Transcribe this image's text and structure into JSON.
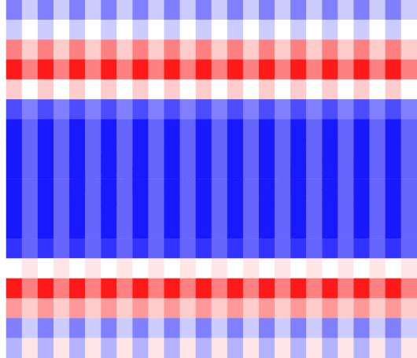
{
  "chart_data": {
    "type": "heatmap",
    "tick_labels": false,
    "color_range": [
      -1,
      1
    ],
    "colors": [
      "#0000ff",
      "#ffffff",
      "#ff0000"
    ],
    "cells": [
      [
        -0.5,
        -0.2,
        -0.5,
        -0.2,
        -0.5,
        -0.2,
        -0.5,
        -0.2,
        -0.5,
        -0.2,
        -0.5,
        -0.2,
        -0.5,
        -0.2,
        -0.5,
        -0.2,
        -0.5,
        -0.2,
        -0.5,
        -0.2,
        -0.5,
        -0.2,
        -0.5,
        -0.2,
        -0.5,
        -0.2
      ],
      [
        -0.2,
        0.0,
        -0.2,
        0.0,
        -0.2,
        0.0,
        -0.2,
        0.0,
        -0.2,
        0.0,
        -0.2,
        0.0,
        -0.2,
        0.0,
        -0.2,
        0.0,
        -0.2,
        0.0,
        -0.2,
        0.0,
        -0.2,
        0.0,
        -0.2,
        0.0,
        -0.2,
        0.0
      ],
      [
        0.5,
        0.2,
        0.5,
        0.2,
        0.5,
        0.2,
        0.5,
        0.2,
        0.5,
        0.2,
        0.5,
        0.2,
        0.5,
        0.2,
        0.5,
        0.2,
        0.5,
        0.2,
        0.5,
        0.2,
        0.5,
        0.2,
        0.5,
        0.2,
        0.5,
        0.2
      ],
      [
        0.9,
        0.5,
        0.9,
        0.5,
        0.9,
        0.5,
        0.9,
        0.5,
        0.9,
        0.5,
        0.9,
        0.5,
        0.9,
        0.5,
        0.9,
        0.5,
        0.9,
        0.5,
        0.9,
        0.5,
        0.9,
        0.5,
        0.9,
        0.5,
        0.9,
        0.5
      ],
      [
        0.2,
        0.0,
        0.2,
        0.0,
        0.2,
        0.0,
        0.2,
        0.0,
        0.2,
        0.0,
        0.2,
        0.0,
        0.2,
        0.0,
        0.2,
        0.0,
        0.2,
        0.0,
        0.2,
        0.0,
        0.2,
        0.0,
        0.2,
        0.0,
        0.2,
        0.0
      ],
      [
        -0.7,
        -0.5,
        -0.7,
        -0.5,
        -0.7,
        -0.5,
        -0.7,
        -0.5,
        -0.7,
        -0.5,
        -0.7,
        -0.5,
        -0.7,
        -0.5,
        -0.7,
        -0.5,
        -0.7,
        -0.5,
        -0.7,
        -0.5,
        -0.7,
        -0.5,
        -0.7,
        -0.5,
        -0.7,
        -0.5
      ],
      [
        -0.9,
        -0.6,
        -0.9,
        -0.6,
        -0.9,
        -0.6,
        -0.9,
        -0.6,
        -0.9,
        -0.6,
        -0.9,
        -0.6,
        -0.9,
        -0.6,
        -0.9,
        -0.6,
        -0.9,
        -0.6,
        -0.9,
        -0.6,
        -0.9,
        -0.6,
        -0.9,
        -0.6,
        -0.9,
        -0.6
      ],
      [
        -0.9,
        -0.6,
        -0.9,
        -0.6,
        -0.9,
        -0.6,
        -0.9,
        -0.6,
        -0.9,
        -0.6,
        -0.9,
        -0.6,
        -0.9,
        -0.6,
        -0.9,
        -0.6,
        -0.9,
        -0.6,
        -0.9,
        -0.6,
        -0.9,
        -0.6,
        -0.9,
        -0.6,
        -0.9,
        -0.6
      ],
      [
        -0.9,
        -0.6,
        -0.9,
        -0.6,
        -0.9,
        -0.6,
        -0.9,
        -0.6,
        -0.9,
        -0.6,
        -0.9,
        -0.6,
        -0.9,
        -0.6,
        -0.9,
        -0.6,
        -0.9,
        -0.6,
        -0.9,
        -0.6,
        -0.9,
        -0.6,
        -0.9,
        -0.6,
        -0.9,
        -0.6
      ],
      [
        -0.9,
        -0.6,
        -0.9,
        -0.6,
        -0.9,
        -0.6,
        -0.9,
        -0.6,
        -0.9,
        -0.6,
        -0.9,
        -0.6,
        -0.9,
        -0.6,
        -0.9,
        -0.6,
        -0.9,
        -0.6,
        -0.9,
        -0.6,
        -0.9,
        -0.6,
        -0.9,
        -0.6,
        -0.9,
        -0.6
      ],
      [
        -0.9,
        -0.6,
        -0.9,
        -0.6,
        -0.9,
        -0.6,
        -0.9,
        -0.6,
        -0.9,
        -0.6,
        -0.9,
        -0.6,
        -0.9,
        -0.6,
        -0.9,
        -0.6,
        -0.9,
        -0.6,
        -0.9,
        -0.6,
        -0.9,
        -0.6,
        -0.9,
        -0.6,
        -0.9,
        -0.6
      ],
      [
        -0.9,
        -0.6,
        -0.9,
        -0.6,
        -0.9,
        -0.6,
        -0.9,
        -0.6,
        -0.9,
        -0.6,
        -0.9,
        -0.6,
        -0.9,
        -0.6,
        -0.9,
        -0.6,
        -0.9,
        -0.6,
        -0.9,
        -0.6,
        -0.9,
        -0.6,
        -0.9,
        -0.6,
        -0.9,
        -0.6
      ],
      [
        -0.8,
        -0.6,
        -0.8,
        -0.6,
        -0.8,
        -0.6,
        -0.8,
        -0.6,
        -0.8,
        -0.6,
        -0.8,
        -0.6,
        -0.8,
        -0.6,
        -0.8,
        -0.6,
        -0.8,
        -0.6,
        -0.8,
        -0.6,
        -0.8,
        -0.6,
        -0.8,
        -0.6,
        -0.8,
        -0.6
      ],
      [
        0.0,
        0.1,
        0.0,
        0.1,
        0.0,
        0.1,
        0.0,
        0.1,
        0.0,
        0.1,
        0.0,
        0.1,
        0.0,
        0.1,
        0.0,
        0.1,
        0.0,
        0.1,
        0.0,
        0.1,
        0.0,
        0.1,
        0.0,
        0.1,
        0.0,
        0.1
      ],
      [
        0.9,
        0.5,
        0.9,
        0.5,
        0.9,
        0.5,
        0.9,
        0.5,
        0.9,
        0.5,
        0.9,
        0.5,
        0.9,
        0.5,
        0.9,
        0.5,
        0.9,
        0.5,
        0.9,
        0.5,
        0.9,
        0.5,
        0.9,
        0.5,
        0.9,
        0.5
      ],
      [
        0.4,
        0.2,
        0.4,
        0.2,
        0.4,
        0.2,
        0.4,
        0.2,
        0.4,
        0.2,
        0.4,
        0.2,
        0.4,
        0.2,
        0.4,
        0.2,
        0.4,
        0.2,
        0.4,
        0.2,
        0.4,
        0.2,
        0.4,
        0.2,
        0.4,
        0.2
      ],
      [
        -0.5,
        -0.2,
        -0.5,
        -0.2,
        -0.5,
        -0.2,
        -0.5,
        -0.2,
        -0.5,
        -0.2,
        -0.5,
        -0.2,
        -0.5,
        -0.2,
        -0.5,
        -0.2,
        -0.5,
        -0.2,
        -0.5,
        -0.2,
        -0.5,
        -0.2,
        -0.5,
        -0.2,
        -0.5,
        -0.2
      ],
      [
        -0.3,
        0.1,
        -0.3,
        0.1,
        -0.3,
        0.1,
        -0.3,
        0.1,
        -0.3,
        0.1,
        -0.3,
        0.1,
        -0.3,
        0.1,
        -0.3,
        0.1,
        -0.3,
        0.1,
        -0.3,
        0.1,
        -0.3,
        0.1,
        -0.3,
        0.1,
        -0.3,
        0.1
      ]
    ]
  }
}
